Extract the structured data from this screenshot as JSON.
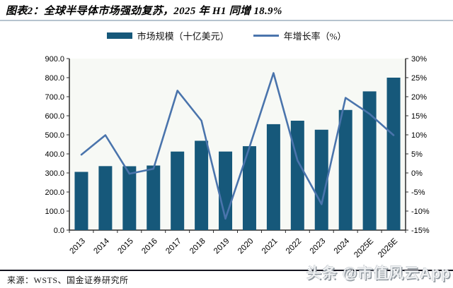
{
  "page": {
    "title": "图表2：全球半导体市场强劲复苏，2025 年 H1 同增 18.9%",
    "source": "来源：WSTS、国金证券研究所",
    "watermark": "头条 @市值风云App"
  },
  "colors": {
    "bar": "#16587A",
    "line": "#4A74AC",
    "axis": "#2B2B2B",
    "tick_label": "#000000",
    "plot_bg": "#F7F9F5",
    "title_divider": "#B6C3CE",
    "footer_divider": "#14141F"
  },
  "chart_data": {
    "type": "bar+line",
    "categories": [
      "2013",
      "2014",
      "2015",
      "2016",
      "2017",
      "2018",
      "2019",
      "2020",
      "2021",
      "2022",
      "2023",
      "2024",
      "2025E",
      "2026E"
    ],
    "series": [
      {
        "name": "市场规模（十亿美元）",
        "type": "bar",
        "axis": "left",
        "values": [
          305.6,
          335.8,
          335.2,
          338.9,
          412.2,
          468.8,
          412.3,
          440.4,
          555.9,
          574.1,
          526.8,
          630.5,
          728.0,
          800.0
        ]
      },
      {
        "name": "年增长率（%）",
        "type": "line",
        "axis": "right",
        "values": [
          4.8,
          9.9,
          -0.2,
          1.1,
          21.6,
          13.7,
          -12.0,
          6.8,
          26.2,
          3.3,
          -8.2,
          19.7,
          15.5,
          9.9
        ]
      }
    ],
    "left_axis": {
      "min": 0,
      "max": 900,
      "step": 100,
      "decimals": 1
    },
    "right_axis": {
      "min": -15,
      "max": 30,
      "step": 5,
      "suffix": "%"
    },
    "grid": false,
    "legend_position": "top"
  }
}
